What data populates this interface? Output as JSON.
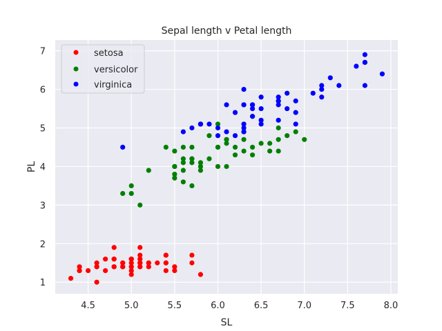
{
  "chart_data": {
    "type": "scatter",
    "title": "Sepal length v Petal length",
    "xlabel": "SL",
    "ylabel": "PL",
    "xlim": [
      4.12,
      8.08
    ],
    "ylim": [
      0.7,
      7.28
    ],
    "xticks": [
      "4.5",
      "5.0",
      "5.5",
      "6.0",
      "6.5",
      "7.0",
      "7.5",
      "8.0"
    ],
    "yticks": [
      "1",
      "2",
      "3",
      "4",
      "5",
      "6",
      "7"
    ],
    "grid": true,
    "legend_position": "top-left",
    "series": [
      {
        "name": "setosa",
        "color": "#ff0000",
        "points": [
          [
            5.1,
            1.4
          ],
          [
            4.9,
            1.4
          ],
          [
            4.7,
            1.3
          ],
          [
            4.6,
            1.5
          ],
          [
            5.0,
            1.4
          ],
          [
            5.4,
            1.7
          ],
          [
            4.6,
            1.4
          ],
          [
            5.0,
            1.5
          ],
          [
            4.4,
            1.4
          ],
          [
            4.9,
            1.5
          ],
          [
            5.4,
            1.5
          ],
          [
            4.8,
            1.6
          ],
          [
            4.8,
            1.4
          ],
          [
            4.3,
            1.1
          ],
          [
            5.8,
            1.2
          ],
          [
            5.7,
            1.5
          ],
          [
            5.4,
            1.3
          ],
          [
            5.1,
            1.4
          ],
          [
            5.7,
            1.7
          ],
          [
            5.1,
            1.5
          ],
          [
            5.4,
            1.7
          ],
          [
            5.1,
            1.5
          ],
          [
            4.6,
            1.0
          ],
          [
            5.1,
            1.7
          ],
          [
            4.8,
            1.9
          ],
          [
            5.0,
            1.6
          ],
          [
            5.0,
            1.6
          ],
          [
            5.2,
            1.5
          ],
          [
            5.2,
            1.4
          ],
          [
            4.7,
            1.6
          ],
          [
            4.8,
            1.6
          ],
          [
            5.4,
            1.5
          ],
          [
            5.2,
            1.5
          ],
          [
            5.5,
            1.4
          ],
          [
            4.9,
            1.5
          ],
          [
            5.0,
            1.2
          ],
          [
            5.5,
            1.3
          ],
          [
            4.9,
            1.4
          ],
          [
            4.4,
            1.3
          ],
          [
            5.1,
            1.5
          ],
          [
            5.0,
            1.3
          ],
          [
            4.5,
            1.3
          ],
          [
            4.4,
            1.3
          ],
          [
            5.0,
            1.6
          ],
          [
            5.1,
            1.9
          ],
          [
            4.8,
            1.4
          ],
          [
            5.1,
            1.6
          ],
          [
            4.6,
            1.4
          ],
          [
            5.3,
            1.5
          ],
          [
            5.0,
            1.4
          ]
        ]
      },
      {
        "name": "versicolor",
        "color": "#008000",
        "points": [
          [
            7.0,
            4.7
          ],
          [
            6.4,
            4.5
          ],
          [
            6.9,
            4.9
          ],
          [
            5.5,
            4.0
          ],
          [
            6.5,
            4.6
          ],
          [
            5.7,
            4.5
          ],
          [
            6.3,
            4.7
          ],
          [
            4.9,
            3.3
          ],
          [
            6.6,
            4.6
          ],
          [
            5.2,
            3.9
          ],
          [
            5.0,
            3.5
          ],
          [
            5.9,
            4.2
          ],
          [
            6.0,
            4.0
          ],
          [
            6.1,
            4.7
          ],
          [
            5.6,
            3.6
          ],
          [
            6.7,
            4.4
          ],
          [
            5.6,
            4.5
          ],
          [
            5.8,
            4.1
          ],
          [
            6.2,
            4.5
          ],
          [
            5.6,
            3.9
          ],
          [
            5.9,
            4.8
          ],
          [
            6.1,
            4.0
          ],
          [
            6.3,
            4.9
          ],
          [
            6.1,
            4.7
          ],
          [
            6.4,
            4.3
          ],
          [
            6.6,
            4.4
          ],
          [
            6.8,
            4.8
          ],
          [
            6.7,
            5.0
          ],
          [
            6.0,
            4.5
          ],
          [
            5.7,
            3.5
          ],
          [
            5.5,
            3.8
          ],
          [
            5.5,
            3.7
          ],
          [
            5.8,
            3.9
          ],
          [
            6.0,
            5.1
          ],
          [
            5.4,
            4.5
          ],
          [
            6.0,
            4.5
          ],
          [
            6.7,
            4.7
          ],
          [
            6.3,
            4.4
          ],
          [
            5.6,
            4.1
          ],
          [
            5.5,
            4.0
          ],
          [
            5.5,
            4.4
          ],
          [
            6.1,
            4.6
          ],
          [
            5.8,
            4.0
          ],
          [
            5.0,
            3.3
          ],
          [
            5.6,
            4.2
          ],
          [
            5.7,
            4.2
          ],
          [
            5.7,
            4.2
          ],
          [
            6.2,
            4.3
          ],
          [
            5.1,
            3.0
          ],
          [
            5.7,
            4.1
          ]
        ]
      },
      {
        "name": "virginica",
        "color": "#0000ff",
        "points": [
          [
            6.3,
            6.0
          ],
          [
            5.8,
            5.1
          ],
          [
            7.1,
            5.9
          ],
          [
            6.3,
            5.6
          ],
          [
            6.5,
            5.8
          ],
          [
            7.6,
            6.6
          ],
          [
            4.9,
            4.5
          ],
          [
            7.3,
            6.3
          ],
          [
            6.7,
            5.8
          ],
          [
            7.2,
            6.1
          ],
          [
            6.5,
            5.1
          ],
          [
            6.4,
            5.3
          ],
          [
            6.8,
            5.5
          ],
          [
            5.7,
            5.0
          ],
          [
            5.8,
            5.1
          ],
          [
            6.4,
            5.3
          ],
          [
            6.5,
            5.5
          ],
          [
            7.7,
            6.7
          ],
          [
            7.7,
            6.9
          ],
          [
            6.0,
            5.0
          ],
          [
            6.9,
            5.7
          ],
          [
            5.6,
            4.9
          ],
          [
            7.7,
            6.7
          ],
          [
            6.3,
            4.9
          ],
          [
            6.7,
            5.7
          ],
          [
            7.2,
            6.0
          ],
          [
            6.2,
            4.8
          ],
          [
            6.1,
            4.9
          ],
          [
            6.4,
            5.6
          ],
          [
            7.2,
            5.8
          ],
          [
            7.4,
            6.1
          ],
          [
            7.9,
            6.4
          ],
          [
            6.4,
            5.6
          ],
          [
            6.3,
            5.1
          ],
          [
            6.1,
            5.6
          ],
          [
            7.7,
            6.1
          ],
          [
            6.3,
            5.6
          ],
          [
            6.4,
            5.5
          ],
          [
            6.0,
            4.8
          ],
          [
            6.9,
            5.4
          ],
          [
            6.7,
            5.6
          ],
          [
            6.9,
            5.1
          ],
          [
            5.8,
            5.1
          ],
          [
            6.8,
            5.9
          ],
          [
            6.7,
            5.7
          ],
          [
            6.7,
            5.2
          ],
          [
            6.3,
            5.0
          ],
          [
            6.5,
            5.2
          ],
          [
            6.2,
            5.4
          ],
          [
            5.9,
            5.1
          ]
        ]
      }
    ]
  }
}
